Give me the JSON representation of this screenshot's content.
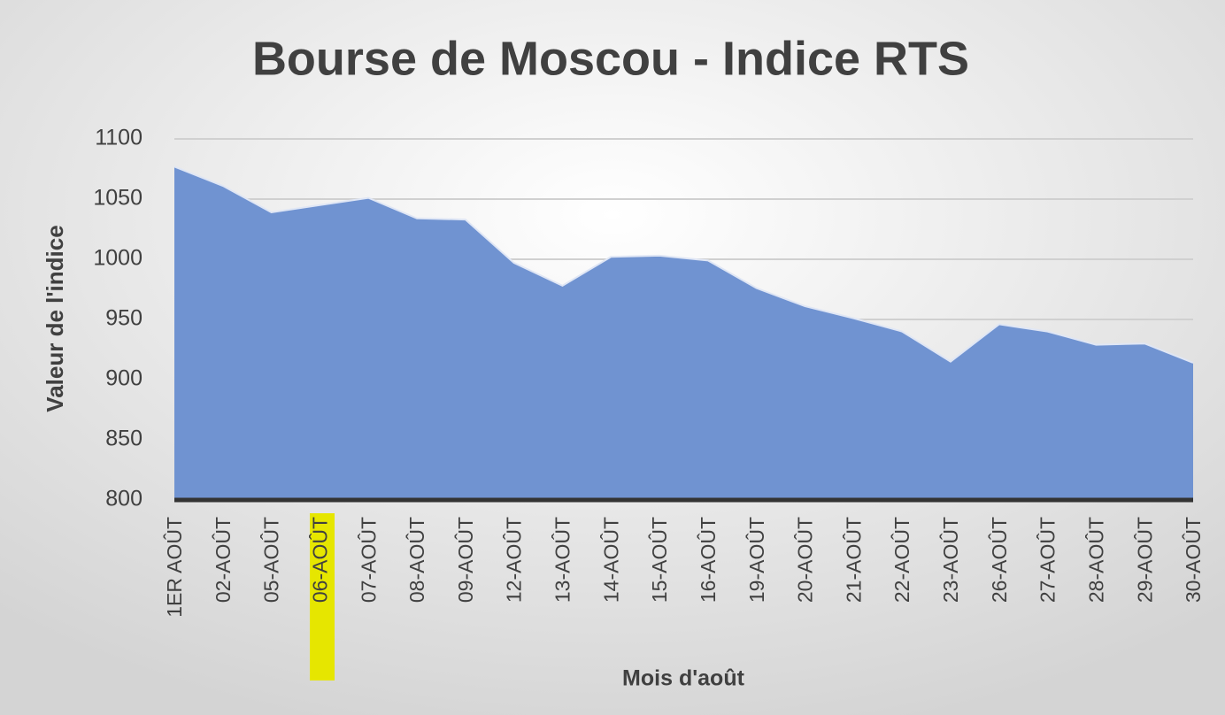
{
  "chart_data": {
    "type": "area",
    "title": "Bourse de Moscou - Indice RTS",
    "x_label": "Mois d'août",
    "y_label": "Valeur de l'indice",
    "categories": [
      "1ER AOÛT",
      "02-AOÛT",
      "05-AOÛT",
      "06-AOÛT",
      "07-AOÛT",
      "08-AOÛT",
      "09-AOÛT",
      "12-AOÛT",
      "13-AOÛT",
      "14-AOÛT",
      "15-AOÛT",
      "16-AOÛT",
      "19-AOÛT",
      "20-AOÛT",
      "21-AOÛT",
      "22-AOÛT",
      "23-AOÛT",
      "26-AOÛT",
      "27-AOÛT",
      "28-AOÛT",
      "29-AOÛT",
      "30-AOÛT"
    ],
    "values": [
      1077,
      1061,
      1039,
      1045,
      1051,
      1034,
      1033,
      997,
      978,
      1002,
      1003,
      999,
      976,
      961,
      951,
      940,
      915,
      946,
      940,
      929,
      930,
      914
    ],
    "color": "#7093d1",
    "ylim": [
      800,
      1100
    ],
    "yticks": [
      800,
      850,
      900,
      950,
      1000,
      1050,
      1100
    ],
    "grid": true
  }
}
